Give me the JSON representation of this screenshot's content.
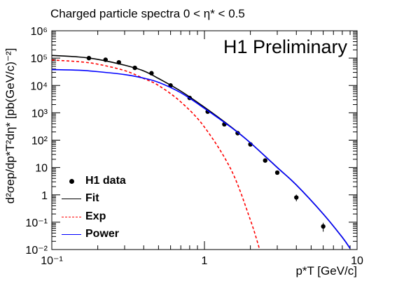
{
  "chart_data": {
    "type": "line",
    "title": "Charged particle spectra 0 < η* < 0.5",
    "watermark": "H1 Preliminary",
    "xlabel": "p*T [GeV/c]",
    "ylabel": "d²σep/dp*T²dη* [pb(GeV/c)⁻²]",
    "xscale": "log",
    "yscale": "log",
    "xlim": [
      0.1,
      10
    ],
    "ylim": [
      0.01,
      1000000
    ],
    "x_ticks": [
      {
        "value": 0.1,
        "label": "10⁻¹"
      },
      {
        "value": 1,
        "label": "1"
      },
      {
        "value": 10,
        "label": "10"
      }
    ],
    "y_ticks": [
      {
        "value": 0.01,
        "label": "10⁻²"
      },
      {
        "value": 0.1,
        "label": "10⁻¹"
      },
      {
        "value": 1,
        "label": "1"
      },
      {
        "value": 10,
        "label": "10"
      },
      {
        "value": 100,
        "label": "10²"
      },
      {
        "value": 1000,
        "label": "10³"
      },
      {
        "value": 10000,
        "label": "10⁴"
      },
      {
        "value": 100000,
        "label": "10⁵"
      },
      {
        "value": 1000000,
        "label": "10⁶"
      }
    ],
    "legend_position": "bottom-left",
    "series": [
      {
        "name": "H1 data",
        "kind": "points",
        "color": "#000000",
        "x": [
          0.175,
          0.225,
          0.275,
          0.35,
          0.45,
          0.6,
          0.8,
          1.05,
          1.35,
          1.65,
          2.0,
          2.5,
          3.0,
          4.0,
          6.0
        ],
        "y": [
          100000,
          87000,
          70000,
          44000,
          28000,
          10000,
          3500,
          1100,
          380,
          180,
          70,
          18,
          6.5,
          0.8,
          0.07
        ],
        "yerr": [
          0,
          0,
          0,
          0,
          0,
          0,
          0,
          0,
          0,
          0,
          0,
          0,
          0,
          0.22,
          0.025
        ]
      },
      {
        "name": "Fit",
        "kind": "line",
        "color": "#000000",
        "dash": "solid",
        "x": [
          0.1,
          0.15,
          0.2,
          0.3,
          0.4,
          0.5,
          0.7,
          1.0,
          1.5,
          2.0,
          3.0,
          4.0,
          6.0,
          8.0,
          9.0
        ],
        "y": [
          125000,
          110000,
          90000,
          55000,
          34000,
          18000,
          6200,
          1600,
          300,
          80,
          10,
          2.3,
          0.2,
          0.028,
          0.011
        ]
      },
      {
        "name": "Exp",
        "kind": "line",
        "color": "#ff0000",
        "dash": "dashed",
        "x": [
          0.1,
          0.15,
          0.2,
          0.3,
          0.4,
          0.5,
          0.7,
          1.0,
          1.5,
          2.0,
          2.3
        ],
        "y": [
          85000,
          74000,
          60000,
          35000,
          18000,
          10000,
          2500,
          300,
          8,
          0.12,
          0.01
        ]
      },
      {
        "name": "Power",
        "kind": "line",
        "color": "#0000ff",
        "dash": "solid",
        "x": [
          0.1,
          0.15,
          0.2,
          0.3,
          0.4,
          0.5,
          0.7,
          1.0,
          1.5,
          2.0,
          3.0,
          4.0,
          6.0,
          8.0,
          9.0
        ],
        "y": [
          38000,
          36000,
          32000,
          25000,
          18500,
          13000,
          5400,
          1450,
          290,
          80,
          10,
          2.3,
          0.2,
          0.028,
          0.011
        ]
      }
    ]
  }
}
